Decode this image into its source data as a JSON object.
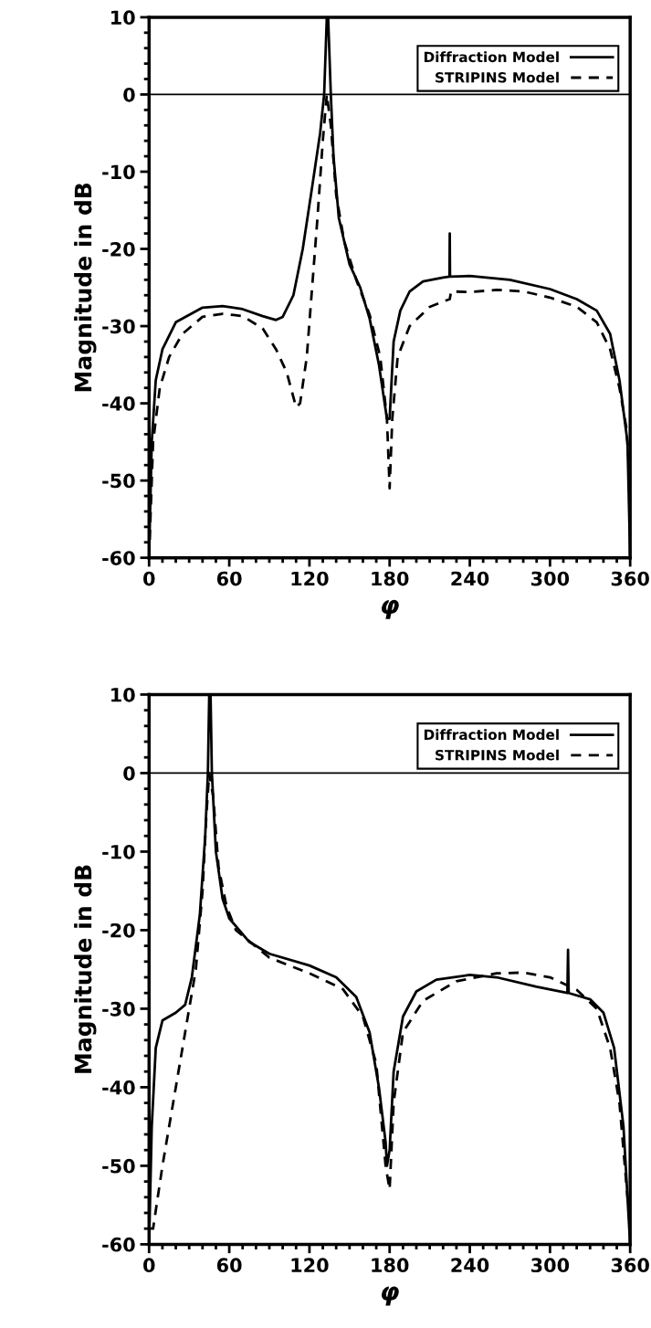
{
  "chart_data": [
    {
      "type": "line",
      "xlabel": "φ",
      "ylabel": "Magnitude in dB",
      "xlim": [
        0,
        360
      ],
      "ylim": [
        -60,
        10
      ],
      "xticks": [
        0,
        60,
        120,
        180,
        240,
        300,
        360
      ],
      "yticks": [
        -60,
        -50,
        -40,
        -30,
        -20,
        -10,
        0,
        10
      ],
      "legend": "top right",
      "grid": false,
      "ref_lines": [
        {
          "axis": "y",
          "value": 0,
          "color": "#000000"
        }
      ],
      "series": [
        {
          "name": "Diffraction Model",
          "color": "#000000",
          "line_style": "solid",
          "x": [
            0,
            2,
            5,
            10,
            20,
            40,
            55,
            70,
            85,
            95,
            100,
            108,
            115,
            122,
            128,
            131,
            133,
            134,
            136,
            138,
            142,
            150,
            158,
            165,
            172,
            178,
            180,
            183,
            188,
            195,
            205,
            220,
            224.8,
            225,
            225.2,
            240,
            270,
            300,
            320,
            335,
            345,
            352,
            358,
            360
          ],
          "values": [
            -60,
            -45,
            -37,
            -33,
            -29.5,
            -27.6,
            -27.4,
            -27.8,
            -28.7,
            -29.2,
            -28.8,
            -26,
            -20,
            -12,
            -5,
            0,
            10,
            10,
            0,
            -8,
            -16,
            -22,
            -25,
            -29,
            -35,
            -42,
            -42,
            -32,
            -28,
            -25.5,
            -24.2,
            -23.7,
            -23.6,
            -18,
            -23.6,
            -23.5,
            -24,
            -25.2,
            -26.5,
            -28,
            -31,
            -37,
            -45,
            -60
          ]
        },
        {
          "name": "STRIPINS Model",
          "color": "#000000",
          "line_style": "dashed",
          "x": [
            0,
            3,
            8,
            15,
            25,
            40,
            55,
            70,
            85,
            95,
            103,
            110,
            113,
            118,
            122,
            126,
            130,
            133,
            136,
            140,
            146,
            155,
            165,
            173,
            178,
            180,
            182,
            186,
            195,
            210,
            225,
            226,
            240,
            260,
            280,
            300,
            320,
            335,
            345,
            352,
            357,
            360
          ],
          "values": [
            -60,
            -45,
            -38,
            -34,
            -31,
            -28.8,
            -28.4,
            -28.7,
            -30.3,
            -33,
            -36,
            -40.5,
            -40,
            -34,
            -25,
            -16,
            -6,
            0,
            -4,
            -13,
            -19,
            -24,
            -28.5,
            -34,
            -42,
            -51,
            -42,
            -34,
            -30,
            -27.5,
            -26.5,
            -25.5,
            -25.6,
            -25.3,
            -25.5,
            -26.3,
            -27.5,
            -29.5,
            -33,
            -38,
            -43,
            -50
          ]
        }
      ]
    },
    {
      "type": "line",
      "xlabel": "φ",
      "ylabel": "Magnitude in dB",
      "xlim": [
        0,
        360
      ],
      "ylim": [
        -60,
        10
      ],
      "xticks": [
        0,
        60,
        120,
        180,
        240,
        300,
        360
      ],
      "yticks": [
        -60,
        -50,
        -40,
        -30,
        -20,
        -10,
        0,
        10
      ],
      "legend": "top right",
      "grid": false,
      "ref_lines": [
        {
          "axis": "y",
          "value": 0,
          "color": "#000000"
        }
      ],
      "series": [
        {
          "name": "Diffraction Model",
          "color": "#000000",
          "line_style": "solid",
          "x": [
            0,
            2,
            5,
            10,
            20,
            27,
            32,
            38,
            42,
            44,
            45,
            46,
            47,
            50,
            55,
            60,
            75,
            90,
            120,
            140,
            155,
            165,
            172,
            177,
            178,
            180,
            183,
            190,
            200,
            215,
            240,
            260,
            290,
            313,
            313.5,
            314,
            330,
            340,
            348,
            355,
            360
          ],
          "values": [
            -60,
            -45,
            -35,
            -31.5,
            -30.5,
            -29.5,
            -26,
            -18,
            -8,
            0,
            10,
            10,
            0,
            -10,
            -16,
            -18.5,
            -21.5,
            -23,
            -24.5,
            -26,
            -28.5,
            -33,
            -40,
            -47,
            -50,
            -48,
            -38,
            -31,
            -27.8,
            -26.3,
            -25.7,
            -26,
            -27.2,
            -28,
            -22.5,
            -28,
            -28.8,
            -30.5,
            -35,
            -45,
            -60
          ]
        },
        {
          "name": "STRIPINS Model",
          "color": "#000000",
          "line_style": "dashed",
          "x": [
            0,
            3,
            10,
            20,
            30,
            35,
            40,
            43,
            45,
            48,
            52,
            58,
            65,
            90,
            120,
            145,
            160,
            170,
            177,
            180,
            183,
            190,
            205,
            230,
            260,
            280,
            300,
            320,
            335,
            345,
            352,
            356,
            360
          ],
          "values": [
            -58,
            -58,
            -50,
            -40,
            -30,
            -25,
            -15,
            -5,
            0,
            -3,
            -12,
            -17,
            -20,
            -23.5,
            -25.5,
            -27.5,
            -31,
            -37,
            -50,
            -53,
            -42,
            -33,
            -29,
            -26.5,
            -25.5,
            -25.4,
            -26,
            -27.6,
            -30,
            -35,
            -42,
            -50,
            -58
          ]
        }
      ]
    }
  ]
}
